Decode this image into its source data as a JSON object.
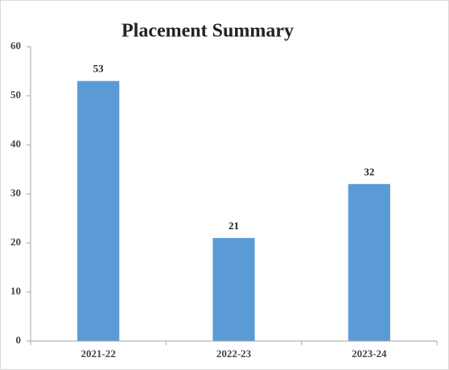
{
  "chart_data": {
    "type": "bar",
    "title": "Placement Summary",
    "categories": [
      "2021-22",
      "2022-23",
      "2023-24"
    ],
    "values": [
      53,
      21,
      32
    ],
    "color": "#5b9bd5",
    "ylim": [
      0,
      60
    ],
    "yticks": [
      0,
      10,
      20,
      30,
      40,
      50,
      60
    ],
    "grid": false,
    "data_labels": true
  }
}
